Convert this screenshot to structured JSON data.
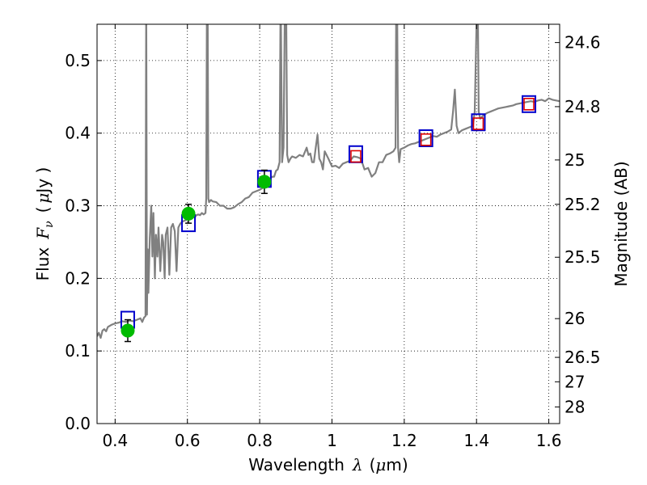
{
  "chart_data": {
    "type": "line",
    "xlabel": {
      "text": "Wavelength",
      "symbol": "λ",
      "unit_open": "(",
      "unit_mu": "μ",
      "unit_rest": "m)"
    },
    "ylabel": {
      "prefix": "Flux",
      "symbol": "F",
      "subscript": "ν",
      "unit_open": "(",
      "unit_mu": "μ",
      "unit_rest": "Jy )"
    },
    "y2label": "Magnitude (AB)",
    "xlim": [
      0.35,
      1.63
    ],
    "ylim": [
      0.0,
      0.55
    ],
    "grid": true,
    "x_ticks": [
      {
        "value": 0.4,
        "label": "0.4"
      },
      {
        "value": 0.6,
        "label": "0.6"
      },
      {
        "value": 0.8,
        "label": "0.8"
      },
      {
        "value": 1.0,
        "label": "1"
      },
      {
        "value": 1.2,
        "label": "1.2"
      },
      {
        "value": 1.4,
        "label": "1.4"
      },
      {
        "value": 1.6,
        "label": "1.6"
      }
    ],
    "y_ticks": [
      {
        "value": 0.0,
        "label": "0.0"
      },
      {
        "value": 0.1,
        "label": "0.1"
      },
      {
        "value": 0.2,
        "label": "0.2"
      },
      {
        "value": 0.3,
        "label": "0.3"
      },
      {
        "value": 0.4,
        "label": "0.4"
      },
      {
        "value": 0.5,
        "label": "0.5"
      }
    ],
    "mag_ticks": [
      {
        "mag": 24.6,
        "label": "24.6"
      },
      {
        "mag": 24.8,
        "label": "24.8"
      },
      {
        "mag": 25.0,
        "label": "25"
      },
      {
        "mag": 25.2,
        "label": "25.2"
      },
      {
        "mag": 25.5,
        "label": "25.5"
      },
      {
        "mag": 26.0,
        "label": "26"
      },
      {
        "mag": 26.5,
        "label": "26.5"
      },
      {
        "mag": 27.0,
        "label": "27"
      },
      {
        "mag": 28.0,
        "label": "28"
      }
    ],
    "series": [
      {
        "kind": "spectrum",
        "color": "#808080",
        "points": [
          [
            0.35,
            0.12
          ],
          [
            0.355,
            0.125
          ],
          [
            0.36,
            0.118
          ],
          [
            0.365,
            0.128
          ],
          [
            0.37,
            0.13
          ],
          [
            0.375,
            0.127
          ],
          [
            0.38,
            0.133
          ],
          [
            0.39,
            0.136
          ],
          [
            0.4,
            0.138
          ],
          [
            0.41,
            0.139
          ],
          [
            0.42,
            0.141
          ],
          [
            0.43,
            0.14
          ],
          [
            0.44,
            0.142
          ],
          [
            0.45,
            0.141
          ],
          [
            0.46,
            0.143
          ],
          [
            0.47,
            0.145
          ],
          [
            0.475,
            0.14
          ],
          [
            0.48,
            0.146
          ],
          [
            0.484,
            0.148
          ],
          [
            0.486,
            0.6
          ],
          [
            0.488,
            0.15
          ],
          [
            0.49,
            0.24
          ],
          [
            0.492,
            0.18
          ],
          [
            0.496,
            0.255
          ],
          [
            0.5,
            0.3
          ],
          [
            0.503,
            0.23
          ],
          [
            0.506,
            0.29
          ],
          [
            0.51,
            0.2
          ],
          [
            0.513,
            0.26
          ],
          [
            0.517,
            0.23
          ],
          [
            0.52,
            0.27
          ],
          [
            0.525,
            0.21
          ],
          [
            0.53,
            0.26
          ],
          [
            0.533,
            0.25
          ],
          [
            0.537,
            0.2
          ],
          [
            0.54,
            0.26
          ],
          [
            0.545,
            0.27
          ],
          [
            0.55,
            0.205
          ],
          [
            0.555,
            0.27
          ],
          [
            0.56,
            0.275
          ],
          [
            0.565,
            0.265
          ],
          [
            0.57,
            0.21
          ],
          [
            0.575,
            0.27
          ],
          [
            0.58,
            0.275
          ],
          [
            0.585,
            0.278
          ],
          [
            0.59,
            0.279
          ],
          [
            0.595,
            0.28
          ],
          [
            0.6,
            0.281
          ],
          [
            0.605,
            0.283
          ],
          [
            0.61,
            0.285
          ],
          [
            0.615,
            0.286
          ],
          [
            0.62,
            0.284
          ],
          [
            0.625,
            0.287
          ],
          [
            0.63,
            0.288
          ],
          [
            0.635,
            0.287
          ],
          [
            0.64,
            0.29
          ],
          [
            0.645,
            0.288
          ],
          [
            0.65,
            0.29
          ],
          [
            0.652,
            0.31
          ],
          [
            0.654,
            0.6
          ],
          [
            0.656,
            0.6
          ],
          [
            0.658,
            0.31
          ],
          [
            0.66,
            0.305
          ],
          [
            0.665,
            0.308
          ],
          [
            0.67,
            0.306
          ],
          [
            0.68,
            0.305
          ],
          [
            0.69,
            0.3
          ],
          [
            0.7,
            0.3
          ],
          [
            0.71,
            0.296
          ],
          [
            0.72,
            0.296
          ],
          [
            0.73,
            0.298
          ],
          [
            0.74,
            0.302
          ],
          [
            0.75,
            0.305
          ],
          [
            0.76,
            0.31
          ],
          [
            0.77,
            0.312
          ],
          [
            0.78,
            0.318
          ],
          [
            0.79,
            0.32
          ],
          [
            0.8,
            0.322
          ],
          [
            0.81,
            0.325
          ],
          [
            0.82,
            0.33
          ],
          [
            0.825,
            0.335
          ],
          [
            0.83,
            0.338
          ],
          [
            0.835,
            0.34
          ],
          [
            0.84,
            0.34
          ],
          [
            0.845,
            0.348
          ],
          [
            0.85,
            0.35
          ],
          [
            0.855,
            0.36
          ],
          [
            0.858,
            0.6
          ],
          [
            0.862,
            0.36
          ],
          [
            0.866,
            0.38
          ],
          [
            0.87,
            0.6
          ],
          [
            0.873,
            0.6
          ],
          [
            0.876,
            0.37
          ],
          [
            0.88,
            0.36
          ],
          [
            0.885,
            0.365
          ],
          [
            0.89,
            0.368
          ],
          [
            0.9,
            0.366
          ],
          [
            0.91,
            0.37
          ],
          [
            0.92,
            0.368
          ],
          [
            0.93,
            0.38
          ],
          [
            0.935,
            0.37
          ],
          [
            0.94,
            0.372
          ],
          [
            0.945,
            0.36
          ],
          [
            0.95,
            0.36
          ],
          [
            0.955,
            0.38
          ],
          [
            0.96,
            0.398
          ],
          [
            0.965,
            0.365
          ],
          [
            0.97,
            0.36
          ],
          [
            0.975,
            0.35
          ],
          [
            0.98,
            0.375
          ],
          [
            0.985,
            0.37
          ],
          [
            0.99,
            0.365
          ],
          [
            1.0,
            0.354
          ],
          [
            1.01,
            0.355
          ],
          [
            1.02,
            0.352
          ],
          [
            1.03,
            0.358
          ],
          [
            1.04,
            0.36
          ],
          [
            1.05,
            0.362
          ],
          [
            1.06,
            0.368
          ],
          [
            1.07,
            0.367
          ],
          [
            1.08,
            0.365
          ],
          [
            1.09,
            0.35
          ],
          [
            1.1,
            0.352
          ],
          [
            1.11,
            0.34
          ],
          [
            1.12,
            0.345
          ],
          [
            1.13,
            0.36
          ],
          [
            1.14,
            0.36
          ],
          [
            1.15,
            0.37
          ],
          [
            1.16,
            0.372
          ],
          [
            1.17,
            0.375
          ],
          [
            1.176,
            0.38
          ],
          [
            1.178,
            0.6
          ],
          [
            1.18,
            0.6
          ],
          [
            1.183,
            0.38
          ],
          [
            1.186,
            0.36
          ],
          [
            1.19,
            0.378
          ],
          [
            1.2,
            0.38
          ],
          [
            1.21,
            0.383
          ],
          [
            1.22,
            0.385
          ],
          [
            1.23,
            0.386
          ],
          [
            1.24,
            0.388
          ],
          [
            1.25,
            0.39
          ],
          [
            1.26,
            0.392
          ],
          [
            1.27,
            0.394
          ],
          [
            1.28,
            0.396
          ],
          [
            1.29,
            0.395
          ],
          [
            1.3,
            0.398
          ],
          [
            1.31,
            0.4
          ],
          [
            1.32,
            0.402
          ],
          [
            1.33,
            0.405
          ],
          [
            1.335,
            0.43
          ],
          [
            1.34,
            0.46
          ],
          [
            1.345,
            0.41
          ],
          [
            1.35,
            0.4
          ],
          [
            1.36,
            0.404
          ],
          [
            1.37,
            0.406
          ],
          [
            1.38,
            0.408
          ],
          [
            1.39,
            0.41
          ],
          [
            1.395,
            0.43
          ],
          [
            1.4,
            0.55
          ],
          [
            1.403,
            0.6
          ],
          [
            1.406,
            0.43
          ],
          [
            1.41,
            0.42
          ],
          [
            1.42,
            0.425
          ],
          [
            1.43,
            0.428
          ],
          [
            1.44,
            0.43
          ],
          [
            1.45,
            0.432
          ],
          [
            1.46,
            0.434
          ],
          [
            1.47,
            0.435
          ],
          [
            1.48,
            0.436
          ],
          [
            1.49,
            0.437
          ],
          [
            1.5,
            0.438
          ],
          [
            1.51,
            0.44
          ],
          [
            1.52,
            0.441
          ],
          [
            1.53,
            0.442
          ],
          [
            1.54,
            0.443
          ],
          [
            1.55,
            0.444
          ],
          [
            1.56,
            0.443
          ],
          [
            1.57,
            0.445
          ],
          [
            1.58,
            0.446
          ],
          [
            1.59,
            0.444
          ],
          [
            1.6,
            0.448
          ],
          [
            1.61,
            0.446
          ],
          [
            1.62,
            0.445
          ],
          [
            1.63,
            0.444
          ]
        ]
      },
      {
        "kind": "model_squares",
        "color": "#0000cc",
        "points": [
          [
            0.435,
            0.143
          ],
          [
            0.603,
            0.276
          ],
          [
            0.813,
            0.337
          ],
          [
            1.066,
            0.371
          ],
          [
            1.26,
            0.393
          ],
          [
            1.405,
            0.415
          ],
          [
            1.545,
            0.44
          ]
        ]
      },
      {
        "kind": "observed_circles",
        "color": "#00bb00",
        "points": [
          [
            0.435,
            0.128,
            0.015
          ],
          [
            0.603,
            0.289,
            0.013
          ],
          [
            0.813,
            0.333,
            0.016
          ]
        ]
      },
      {
        "kind": "upper_limit_squares",
        "color": "#dd0000",
        "points": [
          [
            1.066,
            0.368
          ],
          [
            1.26,
            0.391
          ],
          [
            1.405,
            0.413
          ],
          [
            1.545,
            0.44
          ]
        ]
      }
    ]
  }
}
